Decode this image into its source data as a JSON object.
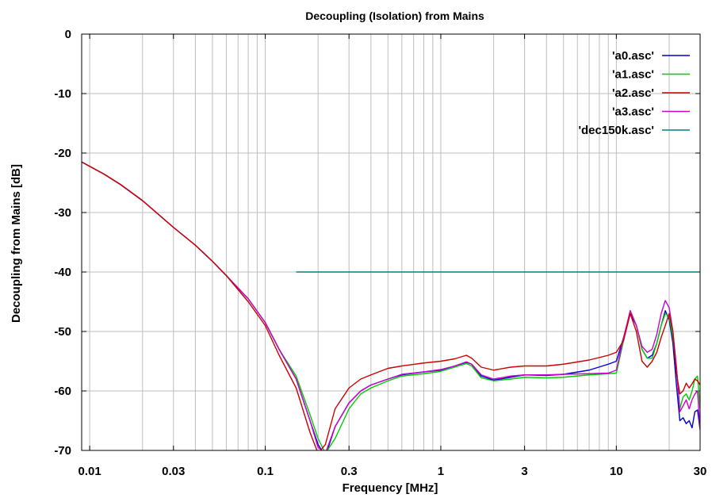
{
  "chart_data": {
    "type": "line",
    "title": "Decoupling (Isolation) from Mains",
    "xlabel": "Frequency [MHz]",
    "ylabel": "Decoupling from Mains [dB]",
    "xscale": "log",
    "xlim": [
      0.009,
      30
    ],
    "ylim": [
      -70,
      0
    ],
    "grid": true,
    "legend_position": "top-right",
    "x_ticks": [
      {
        "value": 0.01,
        "label": "0.01"
      },
      {
        "value": 0.03,
        "label": "0.03"
      },
      {
        "value": 0.1,
        "label": "0.1"
      },
      {
        "value": 0.3,
        "label": "0.3"
      },
      {
        "value": 1,
        "label": "1"
      },
      {
        "value": 3,
        "label": "3"
      },
      {
        "value": 10,
        "label": "10"
      },
      {
        "value": 30,
        "label": "30"
      }
    ],
    "y_ticks": [
      {
        "value": 0,
        "label": "0"
      },
      {
        "value": -10,
        "label": "-10"
      },
      {
        "value": -20,
        "label": "-20"
      },
      {
        "value": -30,
        "label": "-30"
      },
      {
        "value": -40,
        "label": "-40"
      },
      {
        "value": -50,
        "label": "-50"
      },
      {
        "value": -60,
        "label": "-60"
      },
      {
        "value": -70,
        "label": "-70"
      }
    ],
    "series": [
      {
        "name": "'a0.asc'",
        "color": "#0000cc",
        "points": [
          [
            0.009,
            -21.5
          ],
          [
            0.012,
            -23.5
          ],
          [
            0.015,
            -25.3
          ],
          [
            0.02,
            -28
          ],
          [
            0.03,
            -32.5
          ],
          [
            0.04,
            -35.5
          ],
          [
            0.05,
            -38.2
          ],
          [
            0.06,
            -40.6
          ],
          [
            0.08,
            -44.5
          ],
          [
            0.1,
            -48.5
          ],
          [
            0.12,
            -53
          ],
          [
            0.15,
            -58
          ],
          [
            0.18,
            -65
          ],
          [
            0.2,
            -69
          ],
          [
            0.22,
            -71
          ],
          [
            0.25,
            -66
          ],
          [
            0.3,
            -62
          ],
          [
            0.35,
            -60
          ],
          [
            0.4,
            -59
          ],
          [
            0.5,
            -58
          ],
          [
            0.6,
            -57.3
          ],
          [
            0.8,
            -56.8
          ],
          [
            1.0,
            -56.5
          ],
          [
            1.2,
            -55.8
          ],
          [
            1.4,
            -55.2
          ],
          [
            1.5,
            -55.5
          ],
          [
            1.7,
            -57.5
          ],
          [
            2.0,
            -58.2
          ],
          [
            2.5,
            -57.7
          ],
          [
            3.0,
            -57.3
          ],
          [
            4.0,
            -57.4
          ],
          [
            5.0,
            -57.2
          ],
          [
            7.0,
            -56.5
          ],
          [
            9.0,
            -55.5
          ],
          [
            10,
            -55
          ],
          [
            11,
            -51
          ],
          [
            12,
            -47
          ],
          [
            13,
            -49
          ],
          [
            14,
            -53
          ],
          [
            15,
            -54.5
          ],
          [
            16,
            -54
          ],
          [
            17,
            -52
          ],
          [
            18,
            -49
          ],
          [
            19,
            -46.5
          ],
          [
            20,
            -48
          ],
          [
            21,
            -52
          ],
          [
            22,
            -59
          ],
          [
            23,
            -65
          ],
          [
            24,
            -64.5
          ],
          [
            25,
            -65.5
          ],
          [
            26,
            -65
          ],
          [
            27,
            -66.2
          ],
          [
            28,
            -63.5
          ],
          [
            29,
            -63.2
          ],
          [
            30,
            -66.5
          ]
        ]
      },
      {
        "name": "'a1.asc'",
        "color": "#00cc00",
        "points": [
          [
            0.009,
            -21.5
          ],
          [
            0.012,
            -23.5
          ],
          [
            0.015,
            -25.3
          ],
          [
            0.02,
            -28
          ],
          [
            0.03,
            -32.5
          ],
          [
            0.04,
            -35.5
          ],
          [
            0.05,
            -38.2
          ],
          [
            0.06,
            -40.6
          ],
          [
            0.08,
            -44.5
          ],
          [
            0.1,
            -48.5
          ],
          [
            0.12,
            -53
          ],
          [
            0.15,
            -57.5
          ],
          [
            0.18,
            -64
          ],
          [
            0.2,
            -68
          ],
          [
            0.22,
            -70.5
          ],
          [
            0.25,
            -68
          ],
          [
            0.3,
            -63
          ],
          [
            0.35,
            -60.5
          ],
          [
            0.4,
            -59.5
          ],
          [
            0.5,
            -58.3
          ],
          [
            0.6,
            -57.5
          ],
          [
            0.8,
            -57.1
          ],
          [
            1.0,
            -56.7
          ],
          [
            1.2,
            -56
          ],
          [
            1.4,
            -55.4
          ],
          [
            1.5,
            -55.8
          ],
          [
            1.7,
            -57.8
          ],
          [
            2.0,
            -58.3
          ],
          [
            2.5,
            -58
          ],
          [
            3.0,
            -57.7
          ],
          [
            4.0,
            -57.8
          ],
          [
            5.0,
            -57.7
          ],
          [
            7.0,
            -57.3
          ],
          [
            9.0,
            -57.1
          ],
          [
            10,
            -57
          ],
          [
            11,
            -51.5
          ],
          [
            12,
            -46.5
          ],
          [
            13,
            -49
          ],
          [
            14,
            -53
          ],
          [
            15,
            -54.5
          ],
          [
            16,
            -54.5
          ],
          [
            17,
            -52
          ],
          [
            18,
            -49
          ],
          [
            19,
            -47
          ],
          [
            20,
            -47.5
          ],
          [
            21,
            -51
          ],
          [
            22,
            -56
          ],
          [
            23,
            -63
          ],
          [
            24,
            -61
          ],
          [
            25,
            -60.5
          ],
          [
            26,
            -61.5
          ],
          [
            27,
            -60
          ],
          [
            28,
            -58
          ],
          [
            29,
            -57.5
          ],
          [
            30,
            -63
          ]
        ]
      },
      {
        "name": "'a2.asc'",
        "color": "#cc0000",
        "points": [
          [
            0.009,
            -21.5
          ],
          [
            0.012,
            -23.5
          ],
          [
            0.015,
            -25.3
          ],
          [
            0.02,
            -28
          ],
          [
            0.03,
            -32.5
          ],
          [
            0.04,
            -35.5
          ],
          [
            0.05,
            -38.2
          ],
          [
            0.06,
            -40.6
          ],
          [
            0.08,
            -45
          ],
          [
            0.1,
            -49
          ],
          [
            0.12,
            -54
          ],
          [
            0.15,
            -59.5
          ],
          [
            0.18,
            -67
          ],
          [
            0.2,
            -70.5
          ],
          [
            0.22,
            -69
          ],
          [
            0.25,
            -63
          ],
          [
            0.3,
            -59.5
          ],
          [
            0.35,
            -58
          ],
          [
            0.4,
            -57.3
          ],
          [
            0.5,
            -56.2
          ],
          [
            0.6,
            -55.8
          ],
          [
            0.8,
            -55.3
          ],
          [
            1.0,
            -55
          ],
          [
            1.2,
            -54.6
          ],
          [
            1.4,
            -54
          ],
          [
            1.5,
            -54.5
          ],
          [
            1.7,
            -56
          ],
          [
            2.0,
            -56.5
          ],
          [
            2.5,
            -56
          ],
          [
            3.0,
            -55.8
          ],
          [
            4.0,
            -55.8
          ],
          [
            5.0,
            -55.5
          ],
          [
            7.0,
            -54.8
          ],
          [
            9.0,
            -54
          ],
          [
            10,
            -53.5
          ],
          [
            11,
            -51.5
          ],
          [
            12,
            -47
          ],
          [
            13,
            -50
          ],
          [
            14,
            -55
          ],
          [
            15,
            -56
          ],
          [
            16,
            -55
          ],
          [
            17,
            -53.5
          ],
          [
            18,
            -51
          ],
          [
            19,
            -49
          ],
          [
            20,
            -47
          ],
          [
            21,
            -50
          ],
          [
            22,
            -57
          ],
          [
            23,
            -60.5
          ],
          [
            24,
            -60
          ],
          [
            25,
            -58.7
          ],
          [
            26,
            -59.5
          ],
          [
            27,
            -58.8
          ],
          [
            28,
            -58
          ],
          [
            29,
            -58.3
          ],
          [
            30,
            -59
          ]
        ]
      },
      {
        "name": "'a3.asc'",
        "color": "#cc00cc",
        "points": [
          [
            0.009,
            -21.5
          ],
          [
            0.012,
            -23.5
          ],
          [
            0.015,
            -25.3
          ],
          [
            0.02,
            -28
          ],
          [
            0.03,
            -32.5
          ],
          [
            0.04,
            -35.5
          ],
          [
            0.05,
            -38.2
          ],
          [
            0.06,
            -40.6
          ],
          [
            0.08,
            -44.5
          ],
          [
            0.1,
            -48.5
          ],
          [
            0.12,
            -53
          ],
          [
            0.15,
            -58
          ],
          [
            0.18,
            -65
          ],
          [
            0.2,
            -69.5
          ],
          [
            0.22,
            -70.5
          ],
          [
            0.25,
            -66
          ],
          [
            0.3,
            -62
          ],
          [
            0.35,
            -60
          ],
          [
            0.4,
            -59
          ],
          [
            0.5,
            -58
          ],
          [
            0.6,
            -57.2
          ],
          [
            0.8,
            -56.8
          ],
          [
            1.0,
            -56.4
          ],
          [
            1.2,
            -55.8
          ],
          [
            1.4,
            -55.1
          ],
          [
            1.5,
            -55.5
          ],
          [
            1.7,
            -57.3
          ],
          [
            2.0,
            -58
          ],
          [
            2.5,
            -57.5
          ],
          [
            3.0,
            -57.3
          ],
          [
            4.0,
            -57.3
          ],
          [
            5.0,
            -57.2
          ],
          [
            7.0,
            -57.1
          ],
          [
            9.0,
            -57
          ],
          [
            10,
            -56.5
          ],
          [
            11,
            -51
          ],
          [
            12,
            -46.5
          ],
          [
            13,
            -49
          ],
          [
            14,
            -52.5
          ],
          [
            15,
            -53.5
          ],
          [
            16,
            -53
          ],
          [
            17,
            -50.5
          ],
          [
            18,
            -47
          ],
          [
            19,
            -44.8
          ],
          [
            20,
            -46
          ],
          [
            21,
            -50
          ],
          [
            22,
            -56
          ],
          [
            23,
            -63.5
          ],
          [
            24,
            -62.5
          ],
          [
            25,
            -61.5
          ],
          [
            26,
            -63
          ],
          [
            27,
            -61.5
          ],
          [
            28,
            -60.5
          ],
          [
            29,
            -60
          ],
          [
            30,
            -66.5
          ]
        ]
      },
      {
        "name": "'dec150k.asc'",
        "color": "#008080",
        "points": [
          [
            0.15,
            -40
          ],
          [
            30,
            -40
          ]
        ]
      }
    ]
  }
}
